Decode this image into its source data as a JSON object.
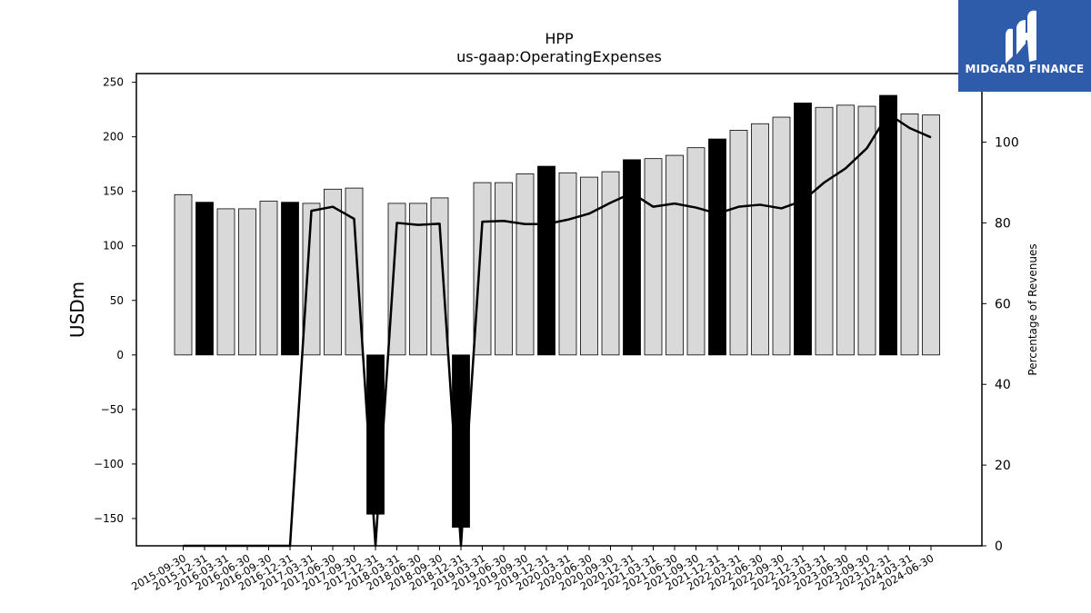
{
  "chart_data": {
    "type": "bar",
    "title": "HPP",
    "subtitle": "us-gaap:OperatingExpenses",
    "ylabel": "USDm",
    "y2label": "Percentage of Revenues",
    "ylim": [
      -175,
      258
    ],
    "y2lim": [
      0,
      117
    ],
    "yticks": [
      250,
      200,
      150,
      100,
      50,
      0,
      -50,
      -100,
      -150
    ],
    "y2ticks": [
      100,
      80,
      60,
      40,
      20,
      0
    ],
    "categories": [
      "2015-09-30",
      "2015-12-31",
      "2016-03-31",
      "2016-06-30",
      "2016-09-30",
      "2016-12-31",
      "2017-03-31",
      "2017-06-30",
      "2017-09-30",
      "2017-12-31",
      "2018-03-31",
      "2018-06-30",
      "2018-09-30",
      "2018-12-31",
      "2019-03-31",
      "2019-06-30",
      "2019-09-30",
      "2019-12-31",
      "2020-03-31",
      "2020-06-30",
      "2020-09-30",
      "2020-12-31",
      "2021-03-31",
      "2021-06-30",
      "2021-09-30",
      "2021-12-31",
      "2022-03-31",
      "2022-06-30",
      "2022-09-30",
      "2022-12-31",
      "2023-03-31",
      "2023-06-30",
      "2023-09-30",
      "2023-12-31",
      "2024-03-31",
      "2024-06-30"
    ],
    "series": [
      {
        "type": "bar",
        "values": [
          147,
          140,
          134,
          134,
          141,
          140,
          139,
          152,
          153,
          -146,
          139,
          139,
          144,
          -158,
          158,
          158,
          166,
          173,
          167,
          163,
          168,
          179,
          180,
          183,
          190,
          198,
          206,
          212,
          218,
          231,
          227,
          229,
          228,
          238,
          221,
          220
        ],
        "highlight": [
          false,
          true,
          false,
          false,
          false,
          true,
          false,
          false,
          false,
          true,
          false,
          false,
          false,
          true,
          false,
          false,
          false,
          true,
          false,
          false,
          false,
          true,
          false,
          false,
          false,
          true,
          false,
          false,
          false,
          true,
          false,
          false,
          false,
          true,
          false,
          false
        ]
      },
      {
        "type": "line",
        "axis": "right",
        "values": [
          0,
          0,
          0,
          0,
          0,
          0,
          83,
          84,
          81,
          0,
          80,
          79.5,
          79.8,
          0,
          80.3,
          80.5,
          79.7,
          79.7,
          80.8,
          82.3,
          85,
          87.4,
          84,
          84.8,
          83.8,
          82.3,
          84,
          84.5,
          83.6,
          85.5,
          90,
          93.5,
          98.5,
          107,
          103.5,
          101.2
        ]
      }
    ],
    "colors": {
      "bar_fill": "#d9d9d9",
      "bar_highlight": "#000000",
      "bar_edge": "#000000",
      "line": "#000000"
    }
  },
  "logo": {
    "text": "MIDGARD FINANCE",
    "background": "#2f5caa"
  }
}
